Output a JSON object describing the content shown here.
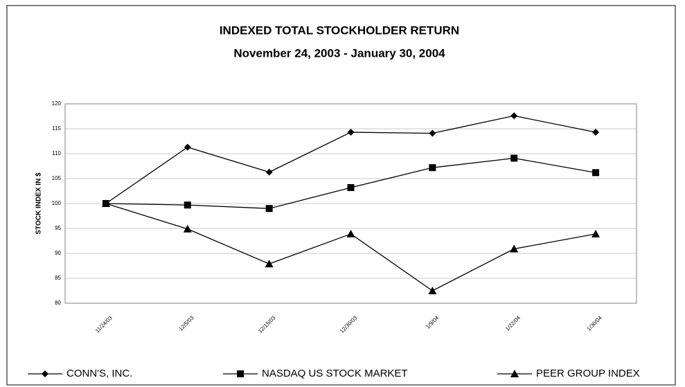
{
  "chart_data": {
    "type": "line",
    "title": "INDEXED TOTAL STOCKHOLDER RETURN",
    "subtitle": "November 24, 2003 - January 30, 2004",
    "y_label": "STOCK INDEX IN $",
    "categories": [
      "11/24/03",
      "12/5/03",
      "12/15/03",
      "12/30/03",
      "1/9/04",
      "1/22/04",
      "1/30/04"
    ],
    "series": [
      {
        "name": "CONN'S, INC.",
        "color": "#000000",
        "marker": "diamond",
        "values": [
          100,
          111.3,
          106.3,
          114.3,
          114.1,
          117.6,
          114.3
        ]
      },
      {
        "name": "NASDAQ US STOCK MARKET",
        "color": "#000000",
        "marker": "square",
        "values": [
          100,
          99.7,
          99.0,
          103.2,
          107.2,
          109.1,
          106.2
        ]
      },
      {
        "name": "PEER GROUP INDEX",
        "color": "#000000",
        "marker": "triangle",
        "values": [
          100,
          94.9,
          87.9,
          93.9,
          82.5,
          90.9,
          93.9
        ]
      }
    ],
    "ylim": [
      80,
      120
    ],
    "yticks": [
      80,
      85,
      90,
      95,
      100,
      105,
      110,
      115,
      120
    ],
    "grid": true,
    "legend": "bottom"
  }
}
